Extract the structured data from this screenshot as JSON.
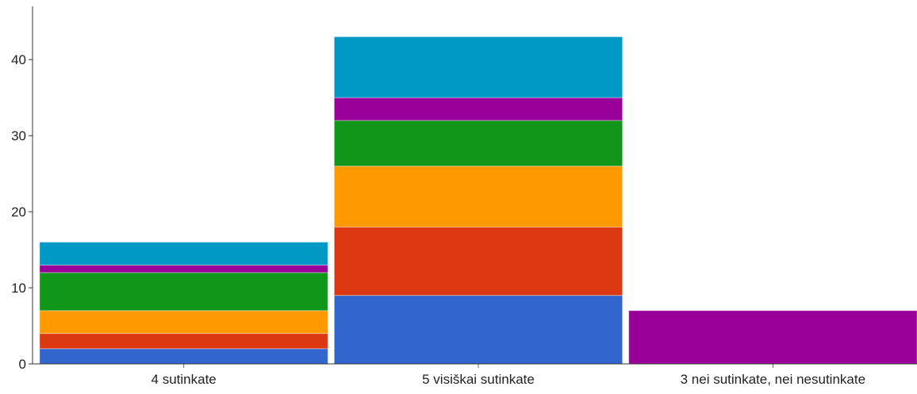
{
  "chart_data": {
    "type": "bar",
    "stacked": true,
    "categories": [
      "4 sutinkate",
      "5 visiškai sutinkate",
      "3 nei sutinkate, nei nesutinkate"
    ],
    "series": [
      {
        "color": "#3366cc",
        "values": [
          2,
          9,
          0
        ]
      },
      {
        "color": "#dc3912",
        "values": [
          2,
          9,
          0
        ]
      },
      {
        "color": "#ff9900",
        "values": [
          3,
          8,
          0
        ]
      },
      {
        "color": "#109618",
        "values": [
          5,
          6,
          0
        ]
      },
      {
        "color": "#990099",
        "values": [
          1,
          3,
          7
        ]
      },
      {
        "color": "#0099c6",
        "values": [
          3,
          8,
          0
        ]
      }
    ],
    "ylim": [
      0,
      47
    ],
    "yticks": [
      0,
      10,
      20,
      30,
      40
    ],
    "title": "",
    "xlabel": "",
    "ylabel": "",
    "legend": "none",
    "grid": false
  }
}
